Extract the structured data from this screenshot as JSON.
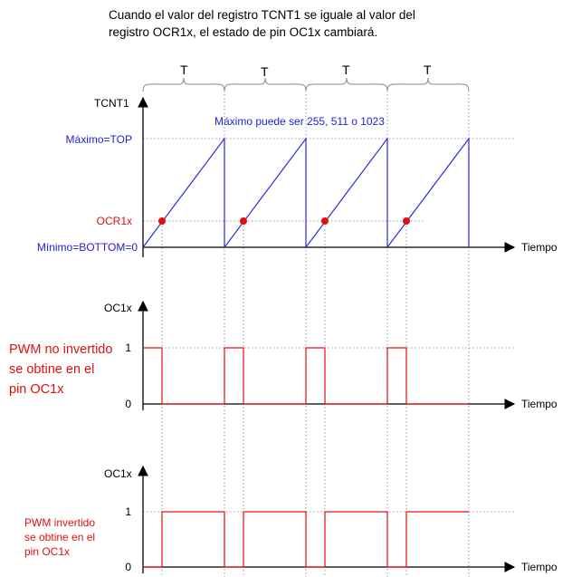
{
  "title_line1": "Cuando el valor del registro TCNT1 se iguale al valor del",
  "title_line2": "registro OCR1x, el estado de pin OC1x cambiará.",
  "period_label": "T",
  "chart1": {
    "y_axis_label": "TCNT1",
    "max_note": "Máximo puede ser 255, 511 o 1023",
    "top_label": "Máximo=TOP",
    "ocr_label": "OCR1x",
    "bottom_label": "Mínimo=BOTTOM=0",
    "x_axis_label": "Tiempo"
  },
  "chart2": {
    "y_axis_label": "OC1x",
    "side_line1": "PWM no invertido",
    "side_line2": "se obtine en el",
    "side_line3": "pin OC1x",
    "tick_high": "1",
    "tick_low": "0",
    "x_axis_label": "Tiempo"
  },
  "chart3": {
    "y_axis_label": "OC1x",
    "side_line1": "PWM invertido",
    "side_line2": "se obtine en el",
    "side_line3": "pin OC1x",
    "tick_high": "1",
    "tick_low": "0",
    "x_axis_label": "Tiempo"
  },
  "colors": {
    "sawtooth": "#2a2ae0",
    "pwm": "#e01010",
    "labels_blue": "#1f1fd6",
    "labels_red": "#e01010"
  }
}
